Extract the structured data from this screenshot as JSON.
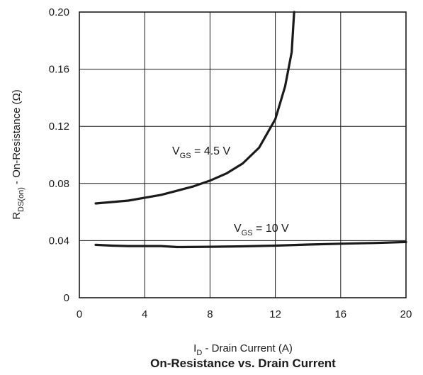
{
  "chart_data": {
    "type": "line",
    "title": "On-Resistance vs. Drain Current",
    "xlabel": {
      "main": "I",
      "sub": "D",
      "rest": " - Drain Current (A)"
    },
    "ylabel": {
      "main": "R",
      "sub": "DS(on)",
      "rest": " - On-Resistance (Ω)"
    },
    "xlim": [
      0,
      20
    ],
    "ylim": [
      0,
      0.2
    ],
    "xticks": [
      "0",
      "4",
      "8",
      "12",
      "16",
      "20"
    ],
    "yticks": [
      "0",
      "0.04",
      "0.08",
      "0.12",
      "0.16",
      "0.20"
    ],
    "grid": true,
    "series": [
      {
        "name": "VGS = 4.5 V",
        "label": {
          "main": "V",
          "sub": "GS",
          "rest": " = 4.5 V"
        },
        "x": [
          1,
          2,
          3,
          4,
          5,
          6,
          7,
          8,
          9,
          10,
          11,
          12,
          12.6,
          13.0,
          13.15
        ],
        "y": [
          0.066,
          0.067,
          0.068,
          0.07,
          0.072,
          0.075,
          0.078,
          0.082,
          0.087,
          0.094,
          0.105,
          0.125,
          0.148,
          0.172,
          0.2
        ]
      },
      {
        "name": "VGS = 10 V",
        "label": {
          "main": "V",
          "sub": "GS",
          "rest": " = 10 V"
        },
        "x": [
          1,
          2,
          3,
          4,
          5,
          6,
          8,
          10,
          12,
          14,
          16,
          18,
          20
        ],
        "y": [
          0.037,
          0.0365,
          0.0362,
          0.0362,
          0.0362,
          0.0355,
          0.0357,
          0.036,
          0.0365,
          0.0372,
          0.0378,
          0.0383,
          0.039
        ]
      }
    ]
  }
}
